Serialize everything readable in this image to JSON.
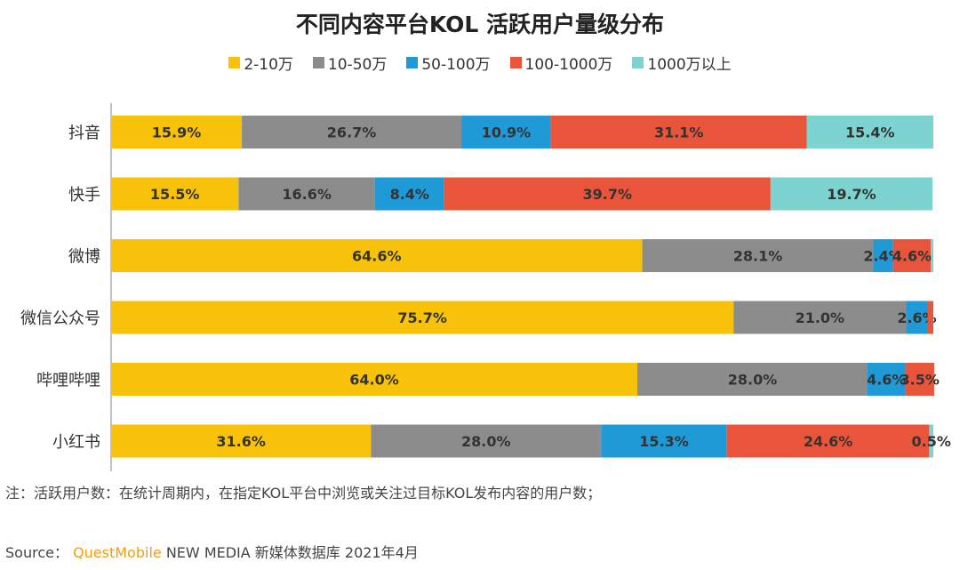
{
  "chart_data": {
    "type": "bar",
    "orientation": "horizontal",
    "stacked": true,
    "title": "不同内容平台KOL 活跃用户量级分布",
    "categories": [
      "抖音",
      "快手",
      "微博",
      "微信公众号",
      "哔哩哔哩",
      "小红书"
    ],
    "series": [
      {
        "name": "2-10万",
        "color": "#f9c20a",
        "values": [
          15.9,
          15.5,
          64.6,
          75.7,
          64.0,
          31.6
        ]
      },
      {
        "name": "10-50万",
        "color": "#8c8c8c",
        "values": [
          26.7,
          16.6,
          28.1,
          21.0,
          28.0,
          28.0
        ]
      },
      {
        "name": "50-100万",
        "color": "#1f9ad6",
        "values": [
          10.9,
          8.4,
          2.4,
          2.6,
          4.6,
          15.3
        ]
      },
      {
        "name": "100-1000万",
        "color": "#e8553a",
        "values": [
          31.1,
          39.7,
          4.6,
          0.7,
          3.5,
          24.6
        ]
      },
      {
        "name": "1000万以上",
        "color": "#7dd3d0",
        "values": [
          15.4,
          19.7,
          0.3,
          0.0,
          0.0,
          0.5
        ]
      }
    ],
    "labels": [
      [
        "15.9%",
        "15.5%",
        "64.6%",
        "75.7%",
        "64.0%",
        "31.6%"
      ],
      [
        "26.7%",
        "16.6%",
        "28.1%",
        "21.0%",
        "28.0%",
        "28.0%"
      ],
      [
        "10.9%",
        "8.4%",
        "2.4%",
        "2.6%",
        "4.6%",
        "15.3%"
      ],
      [
        "31.1%",
        "39.7%",
        "4.6%",
        "",
        "3.5%",
        "24.6%"
      ],
      [
        "15.4%",
        "19.7%",
        "",
        "",
        "",
        "0.5%"
      ]
    ],
    "xlim": [
      0,
      100
    ],
    "legend_position": "top"
  },
  "note": "注：活跃用户数：在统计周期内，在指定KOL平台中浏览或关注过目标KOL发布内容的用户数；",
  "source": {
    "prefix": "Source：",
    "brand": "QuestMobile",
    "suffix": " NEW MEDIA 新媒体数据库 2021年4月"
  }
}
